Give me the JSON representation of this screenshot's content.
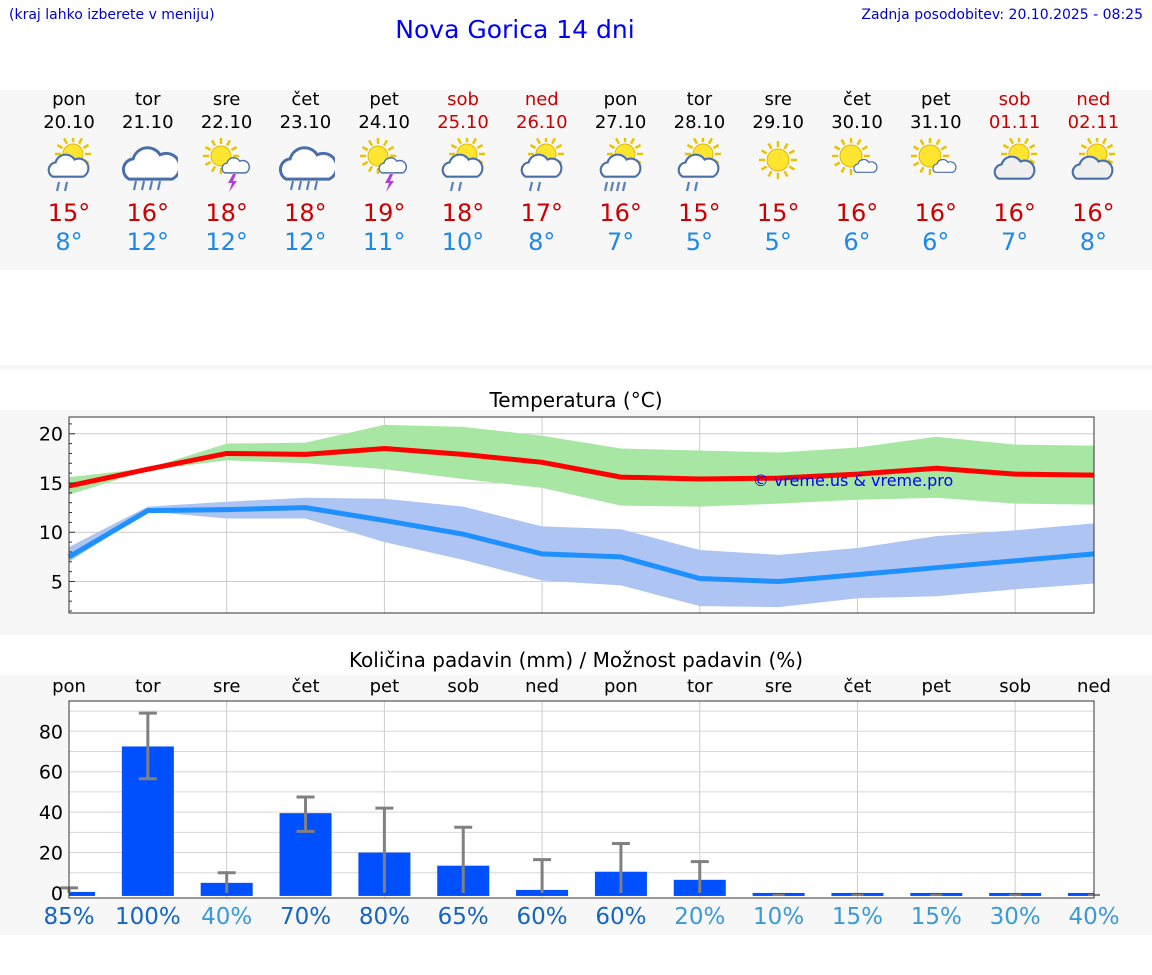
{
  "header": {
    "left_note": "(kraj lahko izberete v meniju)",
    "title": "Nova Gorica 14 dni",
    "updated": "Zadnja posodobitev: 20.10.2025 - 08:25"
  },
  "days": [
    {
      "name": "pon",
      "date": "20.10",
      "weekend": false,
      "icon": "sun-cloud-rain-icon",
      "max": "15°",
      "min": "8°"
    },
    {
      "name": "tor",
      "date": "21.10",
      "weekend": false,
      "icon": "cloud-heavy-rain-icon",
      "max": "16°",
      "min": "12°"
    },
    {
      "name": "sre",
      "date": "22.10",
      "weekend": false,
      "icon": "sun-thunderstorm-icon",
      "max": "18°",
      "min": "12°"
    },
    {
      "name": "čet",
      "date": "23.10",
      "weekend": false,
      "icon": "cloud-heavy-rain-icon",
      "max": "18°",
      "min": "12°"
    },
    {
      "name": "pet",
      "date": "24.10",
      "weekend": false,
      "icon": "sun-thunderstorm-icon",
      "max": "19°",
      "min": "11°"
    },
    {
      "name": "sob",
      "date": "25.10",
      "weekend": true,
      "icon": "sun-cloud-rain-icon",
      "max": "18°",
      "min": "10°"
    },
    {
      "name": "ned",
      "date": "26.10",
      "weekend": true,
      "icon": "sun-cloud-rain-icon",
      "max": "17°",
      "min": "8°"
    },
    {
      "name": "pon",
      "date": "27.10",
      "weekend": false,
      "icon": "sun-cloud-heavy-rain-icon",
      "max": "16°",
      "min": "7°"
    },
    {
      "name": "tor",
      "date": "28.10",
      "weekend": false,
      "icon": "sun-cloud-rain-icon",
      "max": "15°",
      "min": "5°"
    },
    {
      "name": "sre",
      "date": "29.10",
      "weekend": false,
      "icon": "sun-icon",
      "max": "15°",
      "min": "5°"
    },
    {
      "name": "čet",
      "date": "30.10",
      "weekend": false,
      "icon": "sun-small-cloud-icon",
      "max": "16°",
      "min": "6°"
    },
    {
      "name": "pet",
      "date": "31.10",
      "weekend": false,
      "icon": "sun-small-cloud-icon",
      "max": "16°",
      "min": "6°"
    },
    {
      "name": "sob",
      "date": "01.11",
      "weekend": true,
      "icon": "sun-cloud-icon",
      "max": "16°",
      "min": "7°"
    },
    {
      "name": "ned",
      "date": "02.11",
      "weekend": true,
      "icon": "sun-cloud-icon",
      "max": "16°",
      "min": "8°"
    }
  ],
  "chart_data": [
    {
      "type": "line",
      "title": "Temperatura (°C)",
      "watermark": "© vreme.us & vreme.pro",
      "x": [
        0,
        1,
        2,
        3,
        4,
        5,
        6,
        7,
        8,
        9,
        10,
        11,
        12,
        13
      ],
      "ylim": [
        1.8,
        21.7
      ],
      "yticks": [
        5,
        10,
        15,
        20
      ],
      "grid": true,
      "series": [
        {
          "color": "#ff0000",
          "band_color": "#a8e6a3",
          "values": [
            14.7,
            16.4,
            18.0,
            17.9,
            18.5,
            17.9,
            17.1,
            15.6,
            15.4,
            15.5,
            15.9,
            16.5,
            15.9,
            15.8
          ],
          "band_low": [
            13.8,
            16.3,
            17.3,
            17.0,
            16.4,
            15.4,
            14.5,
            12.7,
            12.6,
            12.9,
            13.3,
            13.5,
            12.9,
            12.8
          ],
          "band_high": [
            15.6,
            16.5,
            19.0,
            19.1,
            20.9,
            20.7,
            19.8,
            18.5,
            18.3,
            18.1,
            18.6,
            19.7,
            18.9,
            18.8
          ]
        },
        {
          "color": "#1e90ff",
          "band_color": "#aec4f2",
          "values": [
            7.5,
            12.2,
            12.3,
            12.5,
            11.2,
            9.8,
            7.8,
            7.5,
            5.3,
            5.0,
            5.7,
            6.4,
            7.1,
            7.8
          ],
          "band_low": [
            7.0,
            12.1,
            11.4,
            11.4,
            9.0,
            7.2,
            5.1,
            4.6,
            2.5,
            2.4,
            3.3,
            3.5,
            4.2,
            4.8
          ],
          "band_high": [
            8.5,
            12.6,
            13.1,
            13.5,
            13.4,
            12.6,
            10.6,
            10.3,
            8.2,
            7.7,
            8.4,
            9.6,
            10.2,
            10.9
          ]
        }
      ]
    },
    {
      "type": "bar",
      "title": "Količina padavin (mm) / Možnost padavin (%)",
      "categories": [
        "pon",
        "tor",
        "sre",
        "čet",
        "pet",
        "sob",
        "ned",
        "pon",
        "tor",
        "sre",
        "čet",
        "pet",
        "sob",
        "ned"
      ],
      "values": [
        0.5,
        72.5,
        5.0,
        39.5,
        20.0,
        13.5,
        1.5,
        10.5,
        6.5,
        0,
        0,
        0,
        0,
        0
      ],
      "err_low": [
        0,
        56.5,
        0,
        30.5,
        0,
        0,
        0,
        0,
        0,
        0,
        0,
        0,
        0,
        0
      ],
      "err_high": [
        2.5,
        89.0,
        10.0,
        47.5,
        42.0,
        32.5,
        16.5,
        24.5,
        15.5,
        0.3,
        0.3,
        0.3,
        0.3,
        0.3
      ],
      "ylim": [
        -2.5,
        95
      ],
      "yticks": [
        0,
        20,
        40,
        60,
        80
      ],
      "bar_color": "#0050ff",
      "error_color": "#808080",
      "probability": [
        "85%",
        "100%",
        "40%",
        "70%",
        "80%",
        "65%",
        "60%",
        "60%",
        "20%",
        "10%",
        "15%",
        "15%",
        "30%",
        "40%"
      ],
      "probability_colors": [
        "#1565c0",
        "#1565c0",
        "#3a9ad9",
        "#1565c0",
        "#1565c0",
        "#1565c0",
        "#1565c0",
        "#1565c0",
        "#3a9ad9",
        "#3a9ad9",
        "#3a9ad9",
        "#3a9ad9",
        "#3a9ad9",
        "#3a9ad9"
      ]
    }
  ]
}
